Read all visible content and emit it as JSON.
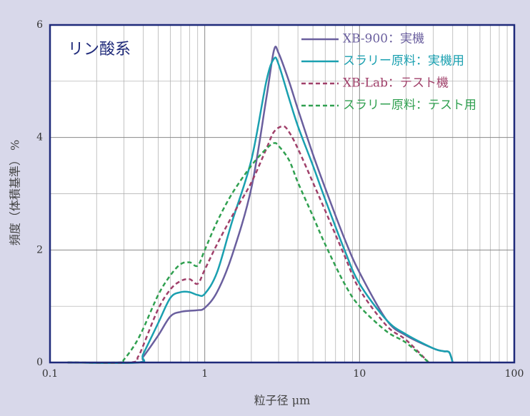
{
  "chart_data": {
    "type": "line",
    "title": "リン酸系",
    "xlabel": "粒子径 μm",
    "ylabel": "頻度（体積基準） %",
    "xscale": "log",
    "xlim": [
      0.1,
      100
    ],
    "ylim": [
      0,
      6
    ],
    "xticks": [
      0.1,
      1,
      10,
      100
    ],
    "yticks": [
      0,
      2,
      4,
      6
    ],
    "x_minor_grid": [
      0.2,
      0.3,
      0.4,
      0.5,
      0.6,
      0.7,
      0.8,
      0.9,
      2,
      3,
      4,
      5,
      6,
      7,
      8,
      9,
      20,
      30,
      40,
      50,
      60,
      70,
      80,
      90
    ],
    "y_minor_grid": [
      1,
      3,
      5
    ],
    "grid": true,
    "legend": "upper right",
    "series": [
      {
        "name": "XB-900：実機",
        "color": "#6a5f9e",
        "dash": "solid",
        "x": [
          0.13,
          0.37,
          0.4,
          0.5,
          0.6,
          0.7,
          0.8,
          0.9,
          1.0,
          1.2,
          1.5,
          2,
          2.5,
          2.8,
          3,
          3.5,
          4,
          5,
          6,
          8,
          10,
          15,
          20,
          30,
          35,
          38,
          40
        ],
        "values": [
          0,
          0,
          0.1,
          0.48,
          0.82,
          0.9,
          0.92,
          0.93,
          0.97,
          1.25,
          1.9,
          3.1,
          4.7,
          5.55,
          5.5,
          5.0,
          4.5,
          3.7,
          3.1,
          2.2,
          1.6,
          0.75,
          0.48,
          0.25,
          0.2,
          0.18,
          0
        ]
      },
      {
        "name": "スラリー原料：実機用",
        "color": "#1aa0b0",
        "dash": "solid",
        "x": [
          0.13,
          0.37,
          0.4,
          0.5,
          0.6,
          0.7,
          0.8,
          0.9,
          1.0,
          1.2,
          1.5,
          2,
          2.5,
          2.8,
          3,
          3.5,
          4,
          5,
          6,
          8,
          10,
          15,
          20,
          30,
          35,
          38,
          40
        ],
        "values": [
          0,
          0,
          0.15,
          0.7,
          1.15,
          1.25,
          1.25,
          1.2,
          1.22,
          1.6,
          2.5,
          3.6,
          5.0,
          5.4,
          5.3,
          4.7,
          4.2,
          3.5,
          2.9,
          2.0,
          1.4,
          0.75,
          0.5,
          0.25,
          0.2,
          0.18,
          0
        ]
      },
      {
        "name": "XB-Lab：テスト機",
        "color": "#a0406a",
        "dash": "dashed",
        "x": [
          0.13,
          0.33,
          0.37,
          0.4,
          0.5,
          0.6,
          0.7,
          0.8,
          0.9,
          1.0,
          1.2,
          1.5,
          2,
          2.5,
          2.8,
          3.2,
          3.5,
          4,
          5,
          6,
          8,
          10,
          15,
          20,
          28
        ],
        "values": [
          0,
          0,
          0.1,
          0.3,
          0.95,
          1.3,
          1.45,
          1.48,
          1.4,
          1.65,
          2.1,
          2.6,
          3.2,
          3.8,
          4.1,
          4.2,
          4.1,
          3.8,
          3.2,
          2.7,
          1.9,
          1.3,
          0.65,
          0.4,
          0
        ]
      },
      {
        "name": "スラリー原料：テスト用",
        "color": "#30a050",
        "dash": "dashed",
        "x": [
          0.13,
          0.28,
          0.3,
          0.35,
          0.4,
          0.5,
          0.6,
          0.7,
          0.8,
          0.9,
          1.0,
          1.2,
          1.5,
          2,
          2.5,
          2.8,
          3,
          3.5,
          4,
          5,
          6,
          8,
          10,
          15,
          20,
          28
        ],
        "values": [
          0,
          0,
          0.05,
          0.3,
          0.6,
          1.2,
          1.55,
          1.75,
          1.78,
          1.72,
          2.0,
          2.5,
          3.0,
          3.5,
          3.8,
          3.9,
          3.85,
          3.6,
          3.2,
          2.6,
          2.1,
          1.4,
          1.0,
          0.55,
          0.35,
          0
        ]
      }
    ]
  }
}
